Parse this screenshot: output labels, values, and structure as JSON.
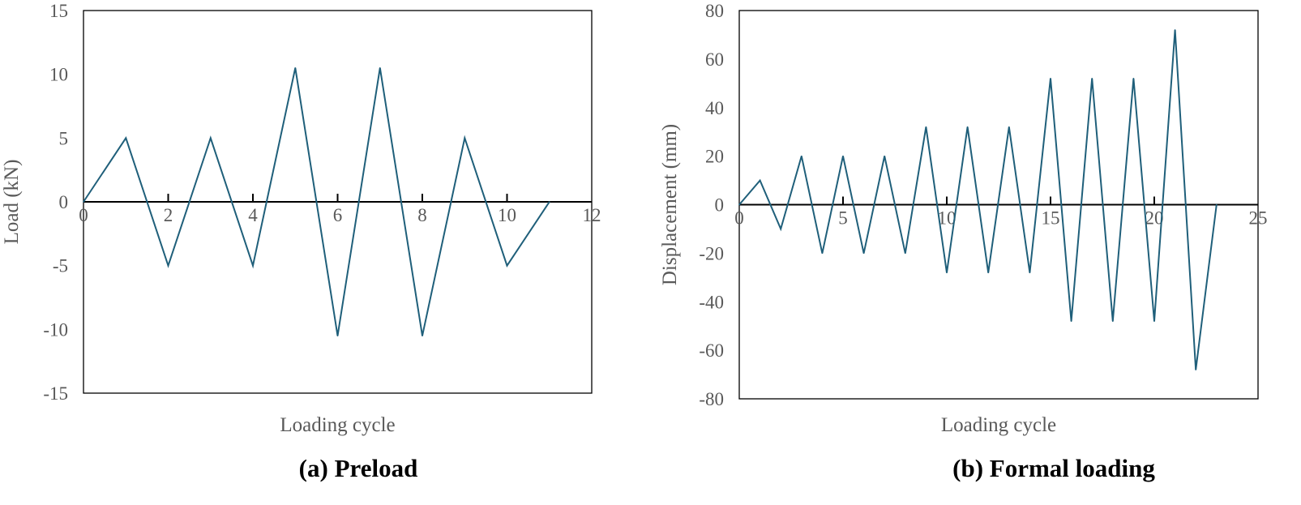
{
  "colors": {
    "series": "#1F5F7A",
    "axis": "#000000",
    "text": "#595959",
    "frame": "#000000"
  },
  "chart_data": [
    {
      "type": "line",
      "caption": "(a) Preload",
      "xlabel": "Loading cycle",
      "ylabel": "Load (kN)",
      "xlim": [
        0,
        12
      ],
      "ylim": [
        -15,
        15
      ],
      "xticks": [
        0,
        2,
        4,
        6,
        8,
        10,
        12
      ],
      "xtick_labels": [
        "0",
        "2",
        "4",
        "6",
        "8",
        "10",
        "12"
      ],
      "yticks": [
        15,
        10,
        5,
        0,
        -5,
        -10,
        -15
      ],
      "ytick_labels": [
        "15",
        "10",
        "5",
        "0",
        "-5",
        "-10",
        "-15"
      ],
      "series": [
        {
          "name": "Load",
          "x": [
            0,
            1,
            2,
            3,
            4,
            5,
            6,
            7,
            8,
            9,
            10,
            11
          ],
          "y": [
            0,
            5,
            -5,
            5,
            -5,
            10.5,
            -10.5,
            10.5,
            -10.5,
            5,
            -5,
            0
          ]
        }
      ]
    },
    {
      "type": "line",
      "caption": "(b) Formal loading",
      "xlabel": "Loading cycle",
      "ylabel": "Displacement (mm)",
      "xlim": [
        0,
        25
      ],
      "ylim": [
        -80,
        80
      ],
      "xticks": [
        0,
        5,
        10,
        15,
        20,
        25
      ],
      "xtick_labels": [
        "0",
        "5",
        "10",
        "15",
        "20",
        "25"
      ],
      "yticks": [
        80,
        60,
        40,
        20,
        0,
        -20,
        -40,
        -60,
        -80
      ],
      "ytick_labels": [
        "80",
        "60",
        "40",
        "20",
        "0",
        "-20",
        "-40",
        "-60",
        "-80"
      ],
      "series": [
        {
          "name": "Displacement",
          "x": [
            0,
            1,
            2,
            3,
            4,
            5,
            6,
            7,
            8,
            9,
            10,
            11,
            12,
            13,
            14,
            15,
            16,
            17,
            18,
            19,
            20,
            21,
            22,
            23
          ],
          "y": [
            0,
            10,
            -10,
            20,
            -20,
            20,
            -20,
            20,
            -20,
            32,
            -28,
            32,
            -28,
            32,
            -28,
            52,
            -48,
            52,
            -48,
            52,
            -48,
            72,
            -68,
            0
          ]
        }
      ]
    }
  ]
}
